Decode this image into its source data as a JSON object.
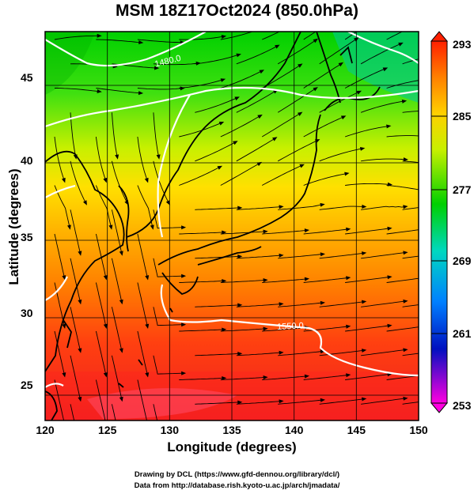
{
  "title": "MSM 18Z17Oct2024 (850.0hPa)",
  "xlabel": "Longitude (degrees)",
  "ylabel": "Latitude  (degrees)",
  "x_ticks": [
    "120",
    "125",
    "130",
    "135",
    "140",
    "145",
    "150"
  ],
  "y_ticks": [
    "25",
    "30",
    "35",
    "40",
    "45"
  ],
  "colorbar_ticks": [
    "293",
    "285",
    "277",
    "269",
    "261",
    "253"
  ],
  "contour_labels": [
    "1480.0",
    "1550.0"
  ],
  "credit_line1": "Drawing by DCL (https://www.gfd-dennou.org/library/dcl/)",
  "credit_line2": "Data from http://database.rish.kyoto-u.ac.jp/arch/jmadata/",
  "chart_data": {
    "type": "heatmap",
    "variable": "temperature (K) with streamlines and geopotential height contours",
    "xlim": [
      120,
      150
    ],
    "ylim": [
      22.5,
      47.5
    ],
    "x_ticks": [
      120,
      125,
      130,
      135,
      140,
      145,
      150
    ],
    "y_ticks": [
      25,
      30,
      35,
      40,
      45
    ],
    "colorbar": {
      "min": 253,
      "max": 293,
      "ticks": [
        293,
        285,
        277,
        269,
        261,
        253
      ]
    },
    "contours": [
      {
        "value": 1480.0,
        "label_lon": 130.2,
        "label_lat": 46.5
      },
      {
        "value": 1550.0,
        "label_lon": 138.8,
        "label_lat": 29.6
      }
    ],
    "grid": true
  }
}
